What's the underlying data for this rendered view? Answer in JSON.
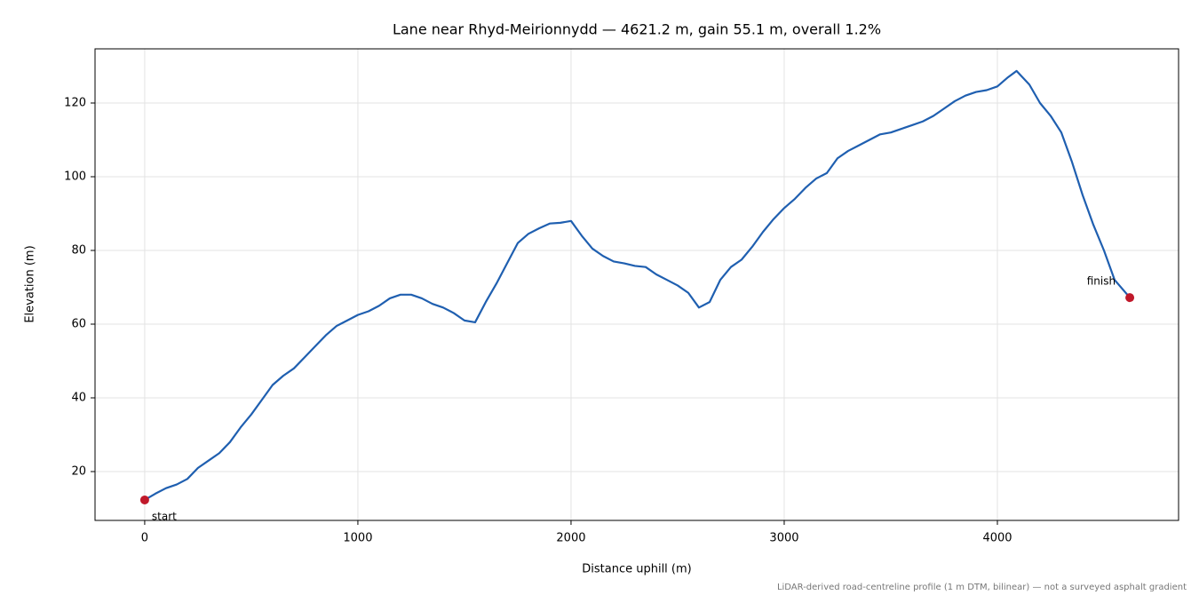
{
  "chart_data": {
    "type": "line",
    "title": "Lane near Rhyd-Meirionnydd — 4621.2 m, gain 55.1 m, overall 1.2%",
    "xlabel": "Distance uphill (m)",
    "ylabel": "Elevation (m)",
    "footnote": "LiDAR-derived road-centreline profile (1 m DTM, bilinear) — not a surveyed asphalt gradient",
    "x": [
      0,
      50,
      100,
      150,
      200,
      250,
      300,
      350,
      400,
      450,
      500,
      550,
      600,
      650,
      700,
      750,
      800,
      850,
      900,
      950,
      1000,
      1050,
      1100,
      1150,
      1200,
      1250,
      1300,
      1350,
      1400,
      1450,
      1500,
      1550,
      1600,
      1650,
      1700,
      1750,
      1800,
      1850,
      1900,
      1950,
      2000,
      2050,
      2100,
      2150,
      2200,
      2250,
      2300,
      2350,
      2400,
      2450,
      2500,
      2550,
      2600,
      2650,
      2700,
      2750,
      2800,
      2850,
      2900,
      2950,
      3000,
      3050,
      3100,
      3150,
      3200,
      3250,
      3300,
      3350,
      3400,
      3450,
      3500,
      3550,
      3600,
      3650,
      3700,
      3750,
      3800,
      3850,
      3900,
      3950,
      4000,
      4050,
      4090,
      4150,
      4200,
      4250,
      4300,
      4350,
      4400,
      4450,
      4500,
      4550,
      4621.2
    ],
    "series": [
      {
        "color": "#1f5fb0",
        "values": [
          12.3,
          14,
          15.5,
          16.5,
          18,
          21,
          23,
          25,
          28,
          32,
          35.5,
          39.5,
          43.5,
          46,
          48,
          51,
          54,
          57,
          59.5,
          61,
          62.5,
          63.5,
          65,
          67,
          68,
          68,
          67,
          65.5,
          64.5,
          63,
          61,
          60.5,
          66,
          71,
          76.5,
          82,
          84.5,
          86,
          87.3,
          87.5,
          88,
          84,
          80.5,
          78.5,
          77,
          76.5,
          75.8,
          75.5,
          73.5,
          72,
          70.5,
          68.5,
          64.5,
          66,
          72,
          75.5,
          77.5,
          81,
          85,
          88.5,
          91.5,
          94,
          97,
          99.5,
          101,
          105,
          107,
          108.5,
          110,
          111.5,
          112,
          113,
          114,
          115,
          116.5,
          118.5,
          120.5,
          122,
          123,
          123.5,
          124.5,
          127,
          128.7,
          125,
          120,
          116.5,
          112,
          104,
          95,
          87,
          80,
          72,
          67.2
        ]
      }
    ],
    "markers": [
      {
        "label": "start",
        "x": 0,
        "y": 12.3,
        "color": "#c0182a"
      },
      {
        "label": "finish",
        "x": 4621.2,
        "y": 67.2,
        "color": "#c0182a"
      }
    ],
    "xlim": [
      -233,
      4850
    ],
    "ylim": [
      6.75,
      134.7
    ],
    "xticks": [
      0,
      1000,
      2000,
      3000,
      4000
    ],
    "yticks": [
      20,
      40,
      60,
      80,
      100,
      120
    ],
    "grid": true
  }
}
